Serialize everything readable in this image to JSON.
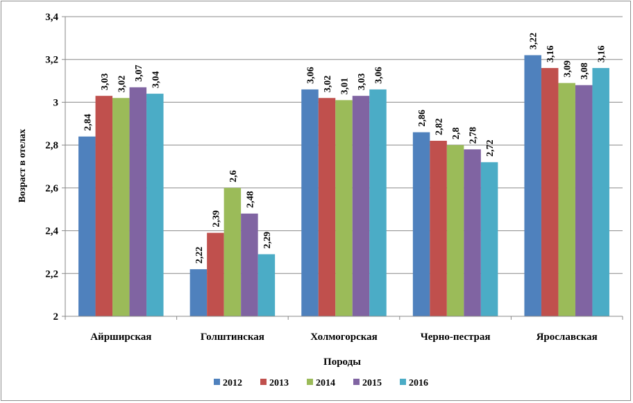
{
  "chart_data": {
    "type": "bar",
    "title": "",
    "xlabel": "Породы",
    "ylabel": "Возраст в отелах",
    "ylim": [
      2,
      3.4
    ],
    "yticks": [
      "2",
      "2,2",
      "2,4",
      "2,6",
      "2,8",
      "3",
      "3,2",
      "3,4"
    ],
    "ytick_values": [
      2,
      2.2,
      2.4,
      2.6,
      2.8,
      3,
      3.2,
      3.4
    ],
    "grid": "horizontal",
    "legend_position": "bottom",
    "categories": [
      "Айрширская",
      "Голштинская",
      "Холмогорская",
      "Черно-пестрая",
      "Ярославская"
    ],
    "series": [
      {
        "name": "2012",
        "color": "#4f81bd",
        "values": [
          2.84,
          2.22,
          3.06,
          2.86,
          3.22
        ],
        "labels": [
          "2,84",
          "2,22",
          "3,06",
          "2,86",
          "3,22"
        ]
      },
      {
        "name": "2013",
        "color": "#c0504d",
        "values": [
          3.03,
          2.39,
          3.02,
          2.82,
          3.16
        ],
        "labels": [
          "3,03",
          "2,39",
          "3,02",
          "2,82",
          "3,16"
        ]
      },
      {
        "name": "2014",
        "color": "#9bbb59",
        "values": [
          3.02,
          2.6,
          3.01,
          2.8,
          3.09
        ],
        "labels": [
          "3,02",
          "2,6",
          "3,01",
          "2,8",
          "3,09"
        ]
      },
      {
        "name": "2015",
        "color": "#8064a2",
        "values": [
          3.07,
          2.48,
          3.03,
          2.78,
          3.08
        ],
        "labels": [
          "3,07",
          "2,48",
          "3,03",
          "2,78",
          "3,08"
        ]
      },
      {
        "name": "2016",
        "color": "#4bacc6",
        "values": [
          3.04,
          2.29,
          3.06,
          2.72,
          3.16
        ],
        "labels": [
          "3,04",
          "2,29",
          "3,06",
          "2,72",
          "3,16"
        ]
      }
    ]
  }
}
